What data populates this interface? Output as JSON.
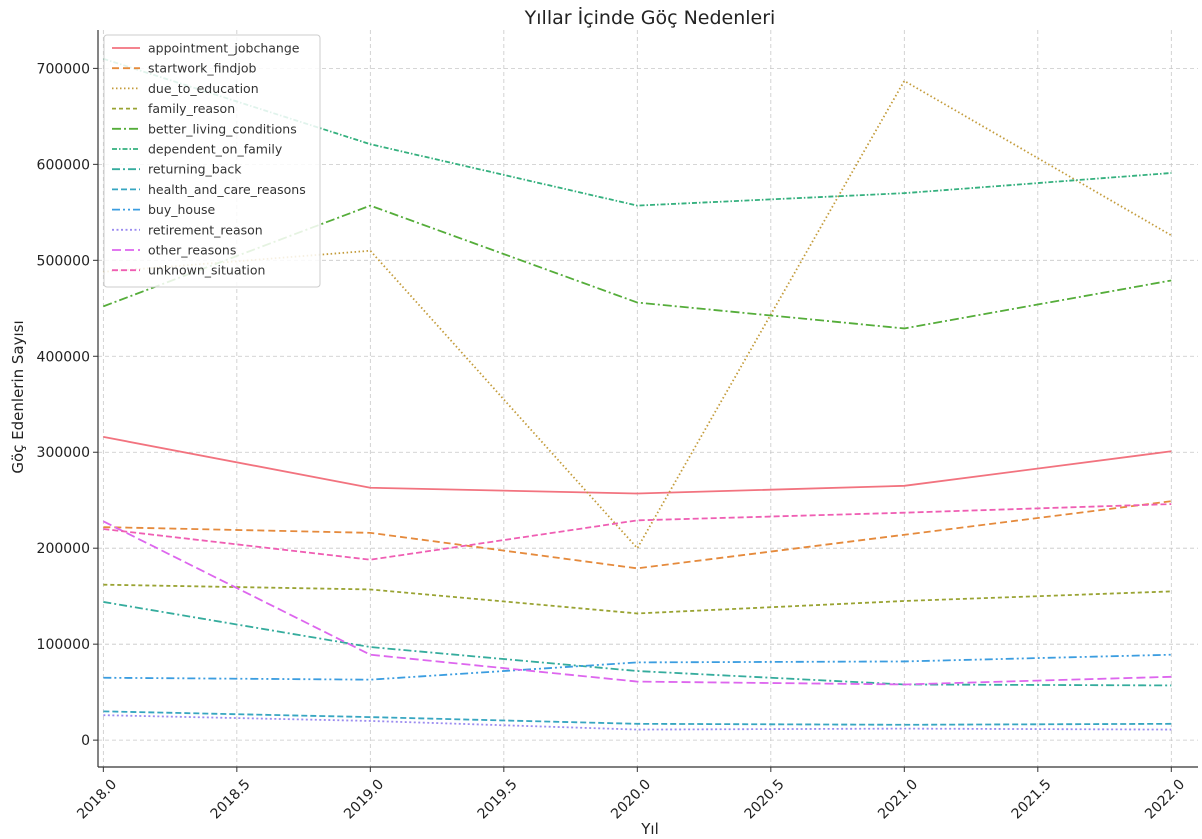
{
  "chart_data": {
    "type": "line",
    "title": "Yıllar İçinde Göç Nedenleri",
    "xlabel": "Yıl",
    "ylabel": "Göç Edenlerin Sayısı",
    "xlim": [
      2017.98,
      2022.1
    ],
    "ylim": [
      -28000,
      740000
    ],
    "xticks": [
      2018.0,
      2018.5,
      2019.0,
      2019.5,
      2020.0,
      2020.5,
      2021.0,
      2021.5,
      2022.0
    ],
    "xtick_labels": [
      "2018.0",
      "2018.5",
      "2019.0",
      "2019.5",
      "2020.0",
      "2020.5",
      "2021.0",
      "2021.5",
      "2022.0"
    ],
    "yticks": [
      0,
      100000,
      200000,
      300000,
      400000,
      500000,
      600000,
      700000
    ],
    "ytick_labels": [
      "0",
      "100000",
      "200000",
      "300000",
      "400000",
      "500000",
      "600000",
      "700000"
    ],
    "grid": true,
    "legend_position": "top-left",
    "x": [
      2018,
      2019,
      2020,
      2021,
      2022
    ],
    "series": [
      {
        "name": "appointment_jobchange",
        "color": "#f2737f",
        "dash": "",
        "values": [
          316000,
          263000,
          257000,
          265000,
          301000
        ]
      },
      {
        "name": "startwork_findjob",
        "color": "#e58a3c",
        "dash": "7 4",
        "values": [
          222000,
          216000,
          179000,
          214000,
          249000
        ]
      },
      {
        "name": "due_to_education",
        "color": "#c39b3a",
        "dash": "1.5 2.5",
        "values": [
          488000,
          510000,
          200000,
          687000,
          526000
        ]
      },
      {
        "name": "family_reason",
        "color": "#99a332",
        "dash": "4 3",
        "values": [
          162000,
          157000,
          132000,
          145000,
          155000
        ]
      },
      {
        "name": "better_living_conditions",
        "color": "#55ad3a",
        "dash": "9 3 2 3",
        "values": [
          452000,
          557000,
          456000,
          429000,
          479000
        ]
      },
      {
        "name": "dependent_on_family",
        "color": "#34b07e",
        "dash": "5 2 1.5 2",
        "values": [
          710000,
          621000,
          557000,
          570000,
          591000
        ]
      },
      {
        "name": "returning_back",
        "color": "#35ac9d",
        "dash": "8 3 2 3",
        "values": [
          144000,
          97000,
          72000,
          58000,
          57000
        ]
      },
      {
        "name": "health_and_care_reasons",
        "color": "#37a6c1",
        "dash": "6 3",
        "values": [
          30000,
          24000,
          17000,
          16000,
          17000
        ]
      },
      {
        "name": "buy_house",
        "color": "#3b9de0",
        "dash": "8 3 2 3 2 3",
        "values": [
          65000,
          63000,
          81000,
          82000,
          89000
        ]
      },
      {
        "name": "retirement_reason",
        "color": "#9b8cf0",
        "dash": "2 2.5",
        "values": [
          26000,
          20000,
          11000,
          12000,
          11000
        ]
      },
      {
        "name": "other_reasons",
        "color": "#dd66ee",
        "dash": "9 4",
        "values": [
          228000,
          89000,
          61000,
          58000,
          66000
        ]
      },
      {
        "name": "unknown_situation",
        "color": "#ef5eb3",
        "dash": "6 3",
        "values": [
          220000,
          188000,
          229000,
          237000,
          246000
        ]
      }
    ]
  }
}
